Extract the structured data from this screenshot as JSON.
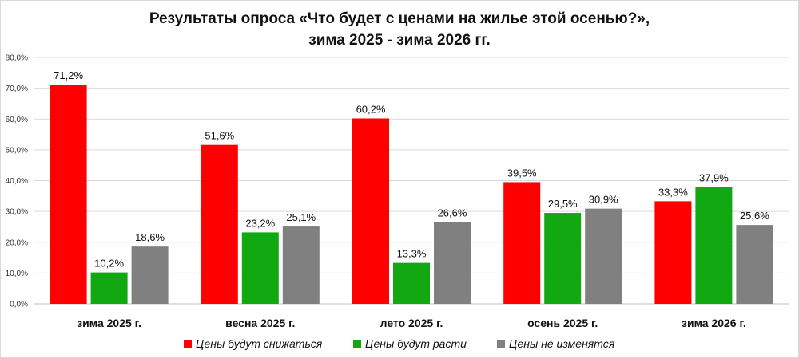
{
  "chart_data": {
    "type": "bar",
    "title_line1": "Результаты опроса «Что будет с ценами на жилье этой осенью?»,",
    "title_line2": "зима 2025 -  зима 2026 гг.",
    "categories": [
      "зима 2025 г.",
      "весна 2025 г.",
      "лето 2025 г.",
      "осень 2025 г.",
      "зима 2026 г."
    ],
    "series": [
      {
        "name": "Цены будут снижаться",
        "color": "#ff0000",
        "values": [
          71.2,
          51.6,
          60.2,
          39.5,
          33.3
        ],
        "labels": [
          "71,2%",
          "51,6%",
          "60,2%",
          "39,5%",
          "33,3%"
        ]
      },
      {
        "name": "Цены будут расти",
        "color": "#12a812",
        "values": [
          10.2,
          23.2,
          13.3,
          29.5,
          37.9
        ],
        "labels": [
          "10,2%",
          "23,2%",
          "13,3%",
          "29,5%",
          "37,9%"
        ]
      },
      {
        "name": "Цены не изменятся",
        "color": "#808080",
        "values": [
          18.6,
          25.1,
          26.6,
          30.9,
          25.6
        ],
        "labels": [
          "18,6%",
          "25,1%",
          "26,6%",
          "30,9%",
          "25,6%"
        ]
      }
    ],
    "ylim": [
      0,
      80
    ],
    "yticks": [
      0,
      10,
      20,
      30,
      40,
      50,
      60,
      70,
      80
    ],
    "ytick_labels": [
      "0,0%",
      "10,0%",
      "20,0%",
      "30,0%",
      "40,0%",
      "50,0%",
      "60,0%",
      "70,0%",
      "80,0%"
    ],
    "xlabel": "",
    "ylabel": "",
    "grid": true,
    "legend": "bottom"
  }
}
